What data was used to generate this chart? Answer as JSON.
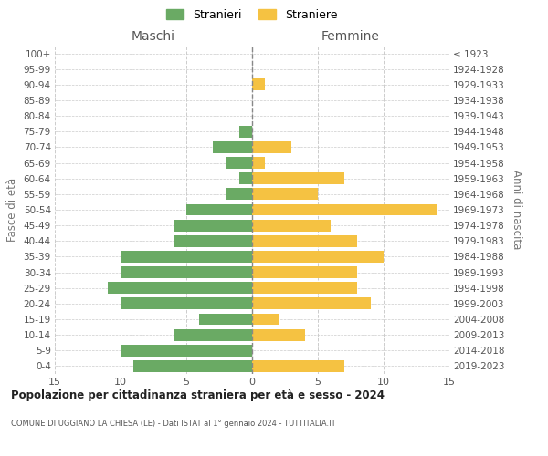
{
  "age_groups": [
    "0-4",
    "5-9",
    "10-14",
    "15-19",
    "20-24",
    "25-29",
    "30-34",
    "35-39",
    "40-44",
    "45-49",
    "50-54",
    "55-59",
    "60-64",
    "65-69",
    "70-74",
    "75-79",
    "80-84",
    "85-89",
    "90-94",
    "95-99",
    "100+"
  ],
  "birth_years": [
    "2019-2023",
    "2014-2018",
    "2009-2013",
    "2004-2008",
    "1999-2003",
    "1994-1998",
    "1989-1993",
    "1984-1988",
    "1979-1983",
    "1974-1978",
    "1969-1973",
    "1964-1968",
    "1959-1963",
    "1954-1958",
    "1949-1953",
    "1944-1948",
    "1939-1943",
    "1934-1938",
    "1929-1933",
    "1924-1928",
    "≤ 1923"
  ],
  "males": [
    9,
    10,
    6,
    4,
    10,
    11,
    10,
    10,
    6,
    6,
    5,
    2,
    1,
    2,
    3,
    1,
    0,
    0,
    0,
    0,
    0
  ],
  "females": [
    7,
    0,
    4,
    2,
    9,
    8,
    8,
    10,
    8,
    6,
    14,
    5,
    7,
    1,
    3,
    0,
    0,
    0,
    1,
    0,
    0
  ],
  "male_color": "#6aaa64",
  "female_color": "#f5c242",
  "title_main": "Popolazione per cittadinanza straniera per età e sesso - 2024",
  "title_sub": "COMUNE DI UGGIANO LA CHIESA (LE) - Dati ISTAT al 1° gennaio 2024 - TUTTITALIA.IT",
  "xlabel_left": "Maschi",
  "xlabel_right": "Femmine",
  "ylabel_left": "Fasce di età",
  "ylabel_right": "Anni di nascita",
  "legend_male": "Stranieri",
  "legend_female": "Straniere",
  "xlim": 15,
  "background_color": "#ffffff",
  "grid_color": "#cccccc"
}
